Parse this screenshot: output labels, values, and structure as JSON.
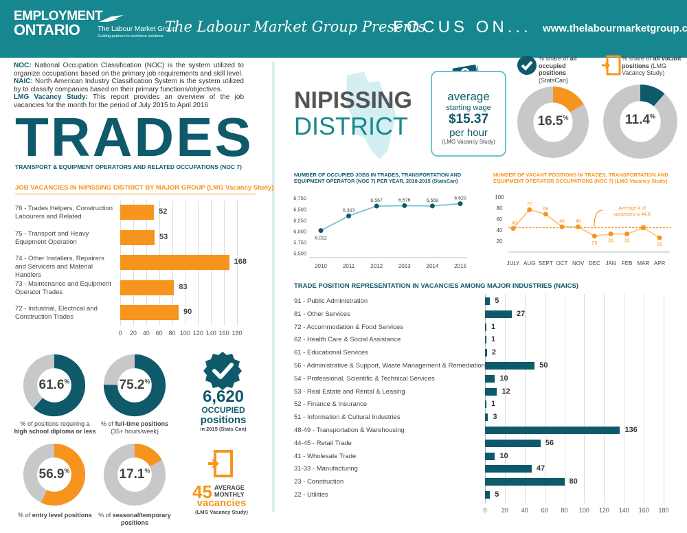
{
  "header": {
    "brand_line1": "EMPLOYMENT",
    "brand_line2": "ONTARIO",
    "lmg_name": "The Labour Market Group",
    "lmg_tagline": "Guiding partners to workforce solutions.",
    "presents": "The Labour Market Group Presents",
    "dash": "-",
    "focus": "FOCUS ON...",
    "website": "www.thelabourmarketgroup.ca"
  },
  "intro": {
    "noc_label": "NOC:",
    "noc_text": " National Occupation Classification (NOC) is the system utilized to organize occupations based on the primary job requirements and skill level.",
    "naic_label": "NAIC:",
    "naic_text": " North American Industry Classification System is the system utilized by to classify companies based on their primary functions/objectives.",
    "lmg_label": "LMG Vacancy Study:",
    "lmg_text": " This report provides an overview of the job vacancies for the month for the period of July 2015 to April 2016"
  },
  "trades": {
    "title": "TRADES",
    "subtitle": "TRANSPORT & EQUIPMENT OPERATORS AND RELATED OCCUPATIONS (NOC 7)"
  },
  "district": {
    "line1": "NIPISSING",
    "line2": "DISTRICT"
  },
  "wage": {
    "t1": "average",
    "t2": "starting wage",
    "amount": "$15.37",
    "per": "per hour",
    "source": "(LMG Vacancy Study)"
  },
  "shares": {
    "occupied_caption_pre": "% share of ",
    "occupied_caption_bold": "all occupied positions",
    "occupied_caption_src": " (StatsCan)",
    "vacant_caption_pre": "% share of ",
    "vacant_caption_bold": "all vacant positions",
    "vacant_caption_src": " (LMG Vacancy Study)",
    "occupied_value": "16.5",
    "occupied_pct": 16.5,
    "vacant_value": "11.4",
    "vacant_pct": 11.4,
    "pct_sign": "%"
  },
  "stats": {
    "hs_value": "61.6",
    "hs_pct": 61.6,
    "hs_caption_pre": "% of positions requiring a",
    "hs_caption_bold": "high school diploma or less",
    "ft_value": "75.2",
    "ft_pct": 75.2,
    "ft_caption_pre": "% of ",
    "ft_caption_bold": "full-time positions",
    "ft_caption_sub": "(35+ hours/week)",
    "entry_value": "56.9",
    "entry_pct": 56.9,
    "entry_caption_pre": "% of ",
    "entry_caption_bold": "entry level positions",
    "seasonal_value": "17.1",
    "seasonal_pct": 17.1,
    "seasonal_caption_pre": "% of ",
    "seasonal_caption_bold": "seasonal/temporary positions",
    "pct_sign": "%"
  },
  "occupied_callout": {
    "number": "6,620",
    "line1": "OCCUPIED",
    "line2": "positions",
    "line3": "in 2015 (Stats Can)"
  },
  "vacancy_callout": {
    "number": "45",
    "line1": "AVERAGE",
    "line2": "MONTHLY",
    "line3": "vacancies",
    "line4": "(LMG Vacancy Study)"
  },
  "chart_data": [
    {
      "id": "vacancies_by_group",
      "type": "bar",
      "orientation": "horizontal",
      "title": "JOB VACANCIES IN NIPISSING DISTRICT BY MAJOR GROUP (LMG Vacancy Study)",
      "categories": [
        "76 - Trades Helpers, Construction Labourers and Related",
        "75 - Transport and Heavy Equipment Operation",
        "74 - Other Installers, Repairers and Servicers and Material Handlers",
        "73 - Maintenance and Equipment Operator Trades",
        "72 - Industrial, Electrical and Construction Trades"
      ],
      "values": [
        52,
        53,
        168,
        83,
        90
      ],
      "xlim": [
        0,
        180
      ],
      "ticks": [
        0,
        20,
        40,
        60,
        80,
        100,
        120,
        140,
        160,
        180
      ]
    },
    {
      "id": "occupied_jobs",
      "type": "line",
      "title": "NUMBER OF OCCUPIED JOBS IN TRADES, TRANSPORTATION AND EQUIPMENT OPERATOR (NOC 7) PER YEAR, 2010-2015 (StatsCan)",
      "x": [
        "2010",
        "2011",
        "2012",
        "2013",
        "2014",
        "2015"
      ],
      "values": [
        6012,
        6343,
        6567,
        6576,
        6569,
        6620
      ],
      "labels": [
        "6,012",
        "6,343",
        "6,567",
        "6,576",
        "6,569",
        "6,620"
      ],
      "ylim": [
        5400,
        6800
      ],
      "yticks": [
        5500,
        5750,
        6000,
        6250,
        6500,
        6750
      ],
      "ytick_labels": [
        "5,500",
        "5,750",
        "6,000",
        "6,250",
        "6,500",
        "6,750"
      ]
    },
    {
      "id": "vacant_positions",
      "type": "line",
      "title": "NUMBER OF VACANT POSITIONS IN TRADES, TRANSPORTATION AND EQUIPMENT OPERATOR OCCUPATIONS (NOC 7) (LMG Vacancy Study)",
      "x": [
        "JULY",
        "AUG",
        "SEPT",
        "OCT",
        "NOV",
        "DEC",
        "JAN",
        "FEB",
        "MAR",
        "APR"
      ],
      "values": [
        43,
        77,
        69,
        46,
        46,
        29,
        33,
        33,
        44,
        26
      ],
      "ylim": [
        0,
        100
      ],
      "yticks": [
        20,
        40,
        60,
        80,
        100
      ],
      "average": 44.6,
      "annotation": "Average # of vacancies is 44.6"
    },
    {
      "id": "industry_vacancies",
      "type": "bar",
      "orientation": "horizontal",
      "title": "TRADE POSITION REPRESENTATION IN VACANCIES AMONG MAJOR INDUSTRIES (NAICS)",
      "categories": [
        "91 - Public Administration",
        "81 - Other Services",
        "72 - Accommodation & Food Services",
        "62 - Health Care & Social Assistance",
        "61 - Educational Services",
        "56 - Administrative & Support, Waste Management & Remediation",
        "54 - Professional, Scientific & Technical Services",
        "53 - Real Estate and Rental & Leasing",
        "52 - Finance & Insurance",
        "51 - Information & Cultural Industries",
        "48-49 - Transportation & Warehousing",
        "44-45 - Retail Trade",
        "41 - Wholesale Trade",
        "31-33 - Manufacturing",
        "23 - Construction",
        "22 - Utilities"
      ],
      "values": [
        5,
        27,
        1,
        1,
        2,
        50,
        10,
        12,
        1,
        3,
        136,
        56,
        10,
        47,
        80,
        5
      ],
      "xlim": [
        0,
        180
      ],
      "ticks": [
        0,
        20,
        40,
        60,
        80,
        100,
        120,
        140,
        160,
        180
      ]
    }
  ],
  "colors": {
    "teal": "#0e5a6b",
    "teal_light": "#17878f",
    "orange": "#f7941d",
    "grey": "#c7c8ca"
  }
}
